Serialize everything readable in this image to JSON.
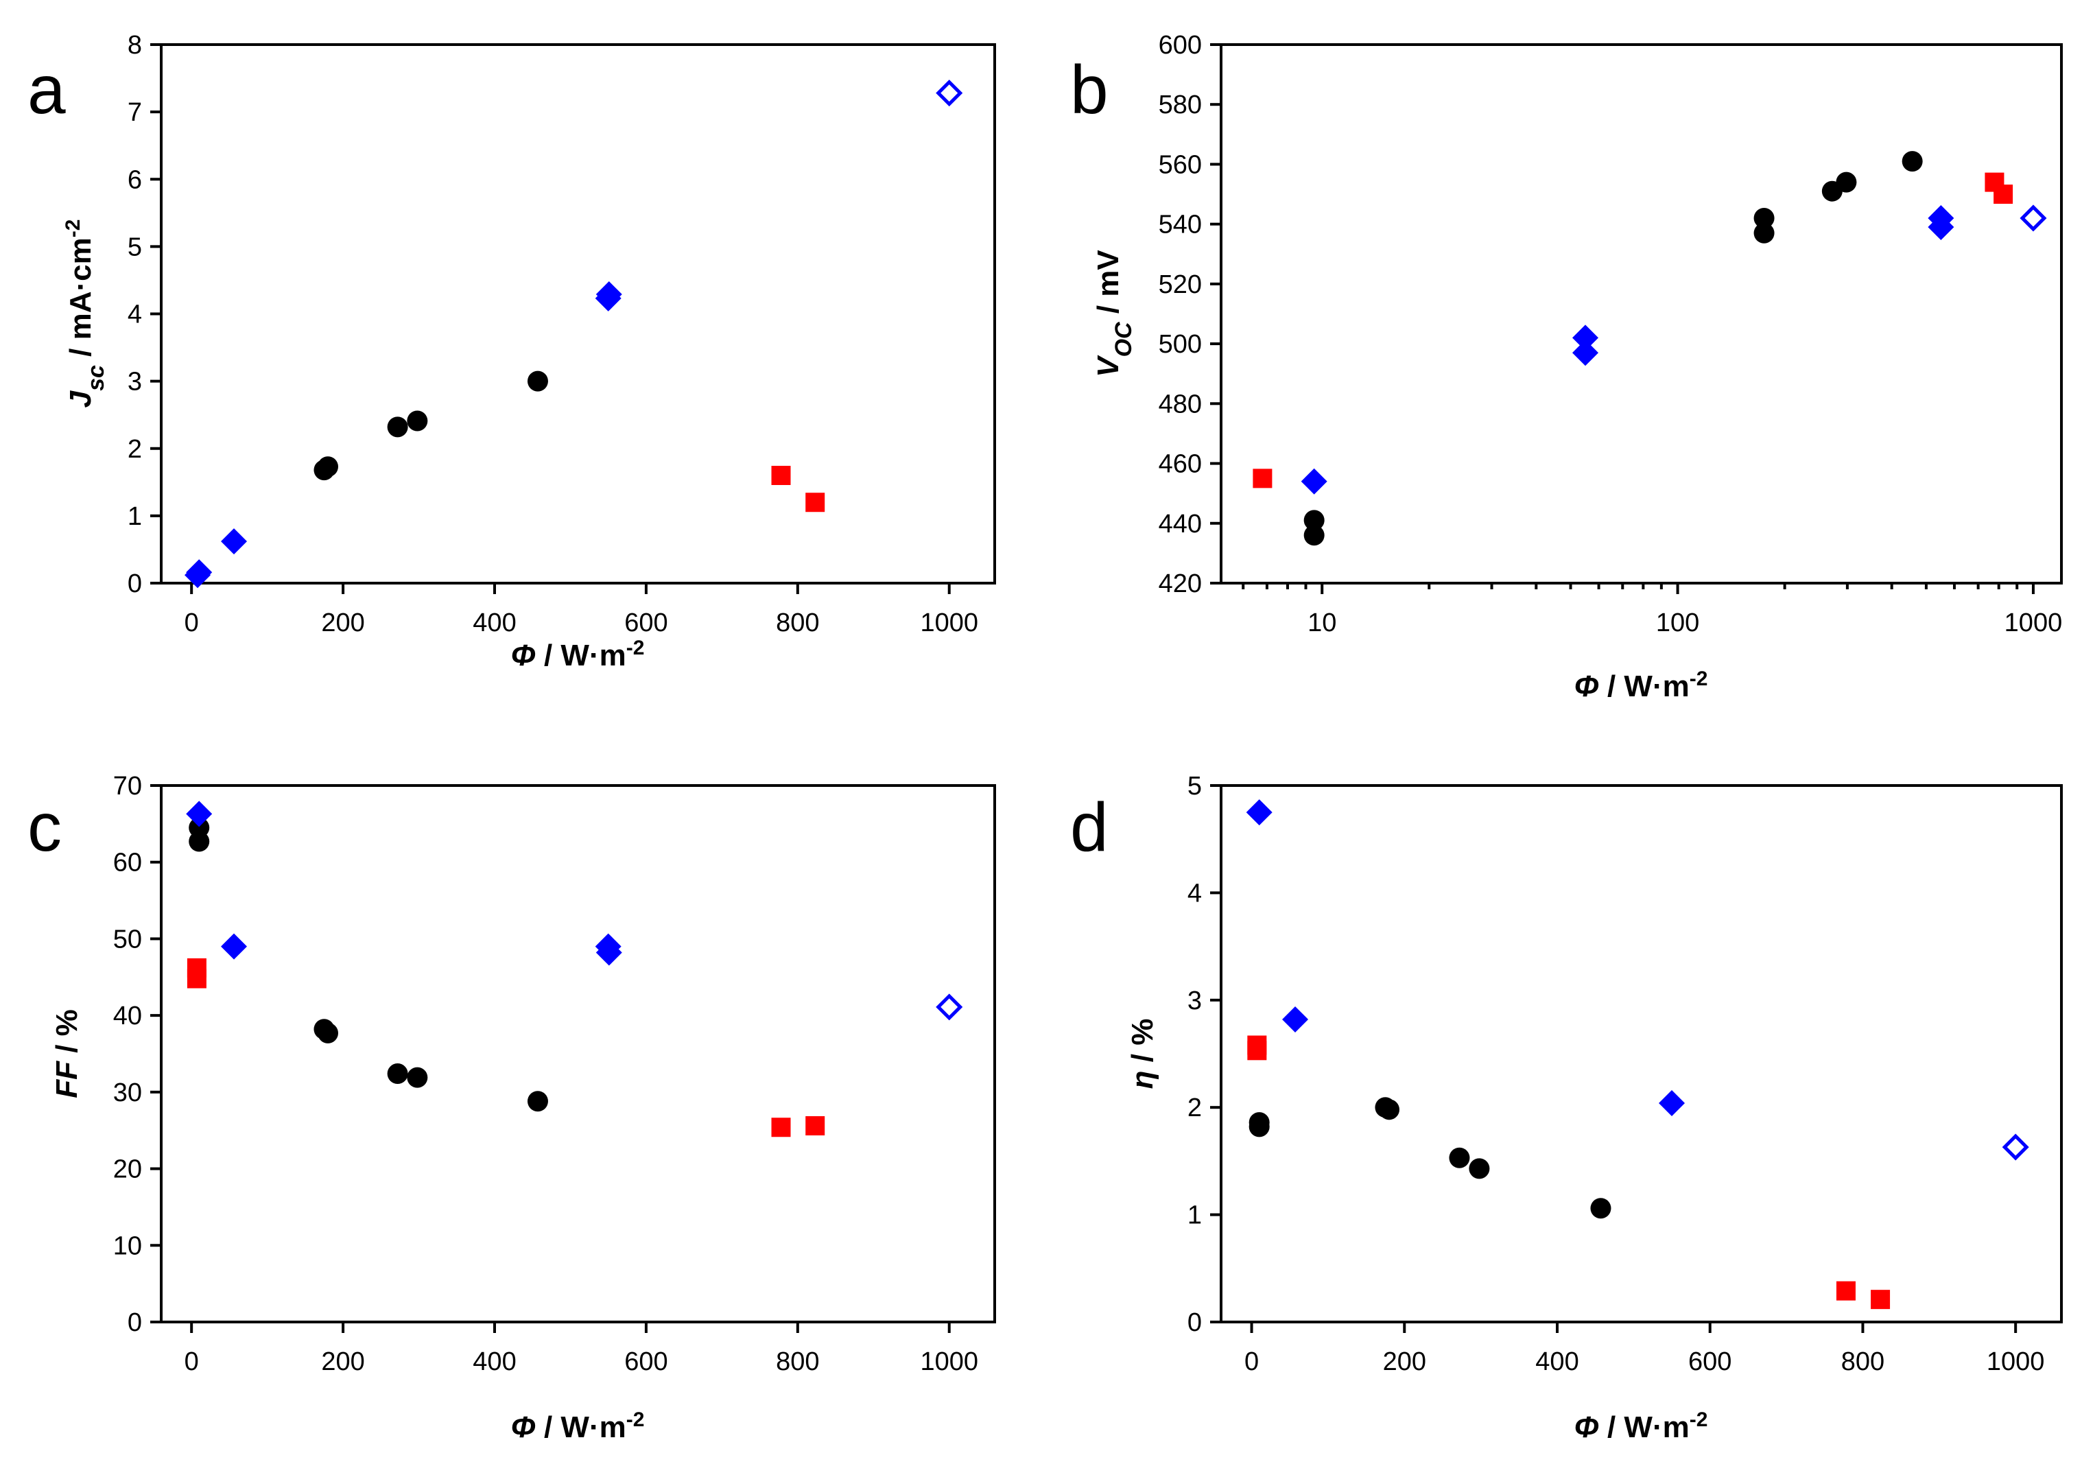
{
  "figure": {
    "colors": {
      "black": "#000000",
      "red": "#ff0000",
      "blue": "#0000ff"
    },
    "series_legend": [
      {
        "name": "black-circles",
        "marker": "circle",
        "color": "#000000"
      },
      {
        "name": "red-squares",
        "marker": "square",
        "color": "#ff0000"
      },
      {
        "name": "blue-diamonds",
        "marker": "diamond",
        "color": "#0000ff"
      },
      {
        "name": "blue-open-diamond",
        "marker": "diamond-open",
        "color": "#0000ff"
      }
    ]
  },
  "chart_data": [
    {
      "panel": "a",
      "type": "scatter",
      "xscale": "linear",
      "xlim": [
        -40,
        1060
      ],
      "ylim": [
        0,
        8
      ],
      "xticks": [
        0,
        200,
        400,
        600,
        800,
        1000
      ],
      "xtick_labels": [
        "0",
        "200",
        "400",
        "600",
        "800",
        "1000"
      ],
      "yticks": [
        0,
        1,
        2,
        3,
        4,
        5,
        6,
        7,
        8
      ],
      "ytick_labels": [
        "0",
        "1",
        "2",
        "3",
        "4",
        "5",
        "6",
        "7",
        "8"
      ],
      "xlabel": {
        "main": "Φ",
        "unit": " / W·m",
        "sup": "-2"
      },
      "ylabel": {
        "main": "J",
        "sub": "sc",
        "unit": " / mA·cm",
        "sup": "-2"
      },
      "series": [
        {
          "name": "black-circles",
          "marker": "circle",
          "color": "#000000",
          "points": [
            [
              175,
              1.68
            ],
            [
              180,
              1.73
            ],
            [
              272,
              2.32
            ],
            [
              298,
              2.41
            ],
            [
              457,
              3.0
            ]
          ]
        },
        {
          "name": "red-squares",
          "marker": "square",
          "color": "#ff0000",
          "points": [
            [
              778,
              1.6
            ],
            [
              823,
              1.2
            ]
          ]
        },
        {
          "name": "blue-diamonds",
          "marker": "diamond",
          "color": "#0000ff",
          "points": [
            [
              8,
              0.12
            ],
            [
              10,
              0.16
            ],
            [
              56,
              0.62
            ],
            [
              550,
              4.23
            ],
            [
              551,
              4.29
            ]
          ]
        },
        {
          "name": "blue-open-diamond",
          "marker": "diamond-open",
          "color": "#0000ff",
          "points": [
            [
              1000,
              7.28
            ]
          ]
        }
      ]
    },
    {
      "panel": "b",
      "type": "scatter",
      "xscale": "log",
      "xlim": [
        5.2,
        1200
      ],
      "ylim": [
        420,
        600
      ],
      "xticks": [
        10,
        100,
        1000
      ],
      "xtick_labels": [
        "10",
        "100",
        "1000"
      ],
      "yticks": [
        420,
        440,
        460,
        480,
        500,
        520,
        540,
        560,
        580,
        600
      ],
      "ytick_labels": [
        "420",
        "440",
        "460",
        "480",
        "500",
        "520",
        "540",
        "560",
        "580",
        "600"
      ],
      "xlabel": {
        "main": "Φ",
        "unit": " / W·m",
        "sup": "-2"
      },
      "ylabel": {
        "main": "V",
        "sub": "OC",
        "unit": " / mV",
        "sup": ""
      },
      "series": [
        {
          "name": "black-circles",
          "marker": "circle",
          "color": "#000000",
          "points": [
            [
              9.5,
              441
            ],
            [
              9.5,
              436
            ],
            [
              175,
              542
            ],
            [
              175,
              537
            ],
            [
              272,
              551
            ],
            [
              298,
              554
            ],
            [
              457,
              561
            ]
          ]
        },
        {
          "name": "red-squares",
          "marker": "square",
          "color": "#ff0000",
          "points": [
            [
              6.8,
              455
            ],
            [
              778,
              554
            ],
            [
              823,
              550
            ]
          ]
        },
        {
          "name": "blue-diamonds",
          "marker": "diamond",
          "color": "#0000ff",
          "points": [
            [
              9.5,
              454
            ],
            [
              55,
              502
            ],
            [
              55,
              497
            ],
            [
              550,
              542
            ],
            [
              550,
              539
            ]
          ]
        },
        {
          "name": "blue-open-diamond",
          "marker": "diamond-open",
          "color": "#0000ff",
          "points": [
            [
              1000,
              542
            ]
          ]
        }
      ]
    },
    {
      "panel": "c",
      "type": "scatter",
      "xscale": "linear",
      "xlim": [
        -40,
        1060
      ],
      "ylim": [
        0,
        70
      ],
      "xticks": [
        0,
        200,
        400,
        600,
        800,
        1000
      ],
      "xtick_labels": [
        "0",
        "200",
        "400",
        "600",
        "800",
        "1000"
      ],
      "yticks": [
        0,
        10,
        20,
        30,
        40,
        50,
        60,
        70
      ],
      "ytick_labels": [
        "0",
        "10",
        "20",
        "30",
        "40",
        "50",
        "60",
        "70"
      ],
      "xlabel": {
        "main": "Φ",
        "unit": " / W·m",
        "sup": "-2"
      },
      "ylabel": {
        "main": "FF",
        "sub": "",
        "unit": " / %",
        "sup": ""
      },
      "series": [
        {
          "name": "black-circles",
          "marker": "circle",
          "color": "#000000",
          "points": [
            [
              10,
              64.5
            ],
            [
              10,
              62.7
            ],
            [
              175,
              38.2
            ],
            [
              180,
              37.7
            ],
            [
              272,
              32.4
            ],
            [
              298,
              31.9
            ],
            [
              457,
              28.8
            ]
          ]
        },
        {
          "name": "red-squares",
          "marker": "square",
          "color": "#ff0000",
          "points": [
            [
              7,
              46.2
            ],
            [
              7,
              44.8
            ],
            [
              778,
              25.4
            ],
            [
              823,
              25.6
            ]
          ]
        },
        {
          "name": "blue-diamonds",
          "marker": "diamond",
          "color": "#0000ff",
          "points": [
            [
              10,
              66.3
            ],
            [
              56,
              49.0
            ],
            [
              550,
              49.0
            ],
            [
              551,
              48.2
            ]
          ]
        },
        {
          "name": "blue-open-diamond",
          "marker": "diamond-open",
          "color": "#0000ff",
          "points": [
            [
              1000,
              41.1
            ]
          ]
        }
      ]
    },
    {
      "panel": "d",
      "type": "scatter",
      "xscale": "linear",
      "xlim": [
        -40,
        1060
      ],
      "ylim": [
        0,
        5
      ],
      "xticks": [
        0,
        200,
        400,
        600,
        800,
        1000
      ],
      "xtick_labels": [
        "0",
        "200",
        "400",
        "600",
        "800",
        "1000"
      ],
      "yticks": [
        0,
        1,
        2,
        3,
        4,
        5
      ],
      "ytick_labels": [
        "0",
        "1",
        "2",
        "3",
        "4",
        "5"
      ],
      "xlabel": {
        "main": "Φ",
        "unit": " / W·m",
        "sup": "-2"
      },
      "ylabel": {
        "main": "η",
        "sub": "",
        "unit": " / %",
        "sup": ""
      },
      "series": [
        {
          "name": "black-circles",
          "marker": "circle",
          "color": "#000000",
          "points": [
            [
              10,
              1.86
            ],
            [
              10,
              1.82
            ],
            [
              175,
              2.0
            ],
            [
              180,
              1.98
            ],
            [
              272,
              1.53
            ],
            [
              298,
              1.43
            ],
            [
              457,
              1.06
            ]
          ]
        },
        {
          "name": "red-squares",
          "marker": "square",
          "color": "#ff0000",
          "points": [
            [
              7,
              2.58
            ],
            [
              7,
              2.53
            ],
            [
              778,
              0.29
            ],
            [
              823,
              0.21
            ]
          ]
        },
        {
          "name": "blue-diamonds",
          "marker": "diamond",
          "color": "#0000ff",
          "points": [
            [
              10,
              4.75
            ],
            [
              57,
              2.82
            ],
            [
              550,
              2.04
            ]
          ]
        },
        {
          "name": "blue-open-diamond",
          "marker": "diamond-open",
          "color": "#0000ff",
          "points": [
            [
              1000,
              1.63
            ]
          ]
        }
      ]
    }
  ]
}
